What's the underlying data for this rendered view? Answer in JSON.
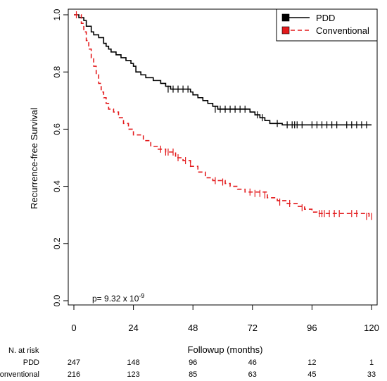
{
  "chart_data": {
    "type": "line",
    "subtype": "kaplan-meier",
    "xlabel": "Followup (months)",
    "ylabel": "Recurrence-free Survival",
    "xlim": [
      0,
      120
    ],
    "ylim": [
      0,
      1
    ],
    "xticks": [
      "0",
      "24",
      "48",
      "72",
      "96",
      "120"
    ],
    "yticks": [
      "0.0",
      "0.2",
      "0.4",
      "0.6",
      "0.8",
      "1.0"
    ],
    "legend_position": "top-right",
    "annotation": {
      "prefix": "p= 9.32 x 10",
      "exponent": "-9"
    },
    "series": [
      {
        "name": "PDD",
        "color": "#000000",
        "dash": "solid",
        "steps": [
          [
            0,
            1.0
          ],
          [
            2,
            0.99
          ],
          [
            4,
            0.98
          ],
          [
            5,
            0.96
          ],
          [
            7,
            0.94
          ],
          [
            8,
            0.93
          ],
          [
            10,
            0.92
          ],
          [
            12,
            0.9
          ],
          [
            13,
            0.89
          ],
          [
            14,
            0.88
          ],
          [
            15,
            0.87
          ],
          [
            17,
            0.86
          ],
          [
            19,
            0.85
          ],
          [
            21,
            0.84
          ],
          [
            23,
            0.83
          ],
          [
            24,
            0.82
          ],
          [
            25,
            0.8
          ],
          [
            27,
            0.79
          ],
          [
            29,
            0.78
          ],
          [
            32,
            0.77
          ],
          [
            35,
            0.76
          ],
          [
            37,
            0.75
          ],
          [
            39,
            0.74
          ],
          [
            47,
            0.73
          ],
          [
            48,
            0.72
          ],
          [
            50,
            0.71
          ],
          [
            52,
            0.7
          ],
          [
            54,
            0.69
          ],
          [
            56,
            0.68
          ],
          [
            58,
            0.67
          ],
          [
            71,
            0.66
          ],
          [
            73,
            0.65
          ],
          [
            75,
            0.64
          ],
          [
            77,
            0.63
          ],
          [
            79,
            0.62
          ],
          [
            84,
            0.615
          ]
        ],
        "censored": [
          [
            38,
            0.74
          ],
          [
            40,
            0.74
          ],
          [
            42,
            0.74
          ],
          [
            44,
            0.74
          ],
          [
            46,
            0.74
          ],
          [
            57,
            0.67
          ],
          [
            59,
            0.67
          ],
          [
            61,
            0.67
          ],
          [
            63,
            0.67
          ],
          [
            65,
            0.67
          ],
          [
            67,
            0.67
          ],
          [
            69,
            0.67
          ],
          [
            74,
            0.65
          ],
          [
            76,
            0.64
          ],
          [
            82,
            0.62
          ],
          [
            86,
            0.615
          ],
          [
            88,
            0.615
          ],
          [
            89,
            0.615
          ],
          [
            90,
            0.615
          ],
          [
            92,
            0.615
          ],
          [
            96,
            0.615
          ],
          [
            98,
            0.615
          ],
          [
            100,
            0.615
          ],
          [
            102,
            0.615
          ],
          [
            104,
            0.615
          ],
          [
            106,
            0.615
          ],
          [
            110,
            0.615
          ],
          [
            112,
            0.615
          ],
          [
            114,
            0.615
          ],
          [
            116,
            0.615
          ],
          [
            118,
            0.615
          ]
        ]
      },
      {
        "name": "Conventional",
        "color": "#e31a1c",
        "dash": "dashed",
        "steps": [
          [
            0,
            1.0
          ],
          [
            3,
            0.97
          ],
          [
            4,
            0.94
          ],
          [
            5,
            0.91
          ],
          [
            6,
            0.88
          ],
          [
            7,
            0.85
          ],
          [
            8,
            0.82
          ],
          [
            9,
            0.79
          ],
          [
            10,
            0.76
          ],
          [
            11,
            0.73
          ],
          [
            12,
            0.71
          ],
          [
            13,
            0.69
          ],
          [
            14,
            0.67
          ],
          [
            16,
            0.66
          ],
          [
            18,
            0.64
          ],
          [
            20,
            0.62
          ],
          [
            22,
            0.6
          ],
          [
            24,
            0.58
          ],
          [
            28,
            0.56
          ],
          [
            31,
            0.54
          ],
          [
            34,
            0.53
          ],
          [
            37,
            0.52
          ],
          [
            41,
            0.5
          ],
          [
            44,
            0.49
          ],
          [
            47,
            0.47
          ],
          [
            50,
            0.45
          ],
          [
            53,
            0.43
          ],
          [
            56,
            0.42
          ],
          [
            61,
            0.41
          ],
          [
            63,
            0.4
          ],
          [
            66,
            0.39
          ],
          [
            69,
            0.38
          ],
          [
            78,
            0.36
          ],
          [
            82,
            0.35
          ],
          [
            86,
            0.34
          ],
          [
            90,
            0.33
          ],
          [
            93,
            0.32
          ],
          [
            96,
            0.31
          ],
          [
            98,
            0.305
          ],
          [
            119,
            0.295
          ]
        ],
        "censored": [
          [
            1,
            1.0
          ],
          [
            35,
            0.53
          ],
          [
            37,
            0.52
          ],
          [
            38,
            0.52
          ],
          [
            40,
            0.52
          ],
          [
            42,
            0.5
          ],
          [
            45,
            0.49
          ],
          [
            47,
            0.48
          ],
          [
            57,
            0.42
          ],
          [
            60,
            0.415
          ],
          [
            71,
            0.38
          ],
          [
            73,
            0.375
          ],
          [
            75,
            0.375
          ],
          [
            77,
            0.37
          ],
          [
            83,
            0.345
          ],
          [
            87,
            0.34
          ],
          [
            92,
            0.325
          ],
          [
            99,
            0.305
          ],
          [
            100,
            0.305
          ],
          [
            101,
            0.305
          ],
          [
            103,
            0.305
          ],
          [
            105,
            0.305
          ],
          [
            107,
            0.305
          ],
          [
            112,
            0.305
          ],
          [
            114,
            0.305
          ],
          [
            118,
            0.295
          ],
          [
            120,
            0.295
          ]
        ]
      }
    ],
    "risk_table": {
      "title": "N. at risk",
      "rows": [
        {
          "label": "PDD",
          "values": [
            "247",
            "148",
            "96",
            "46",
            "12",
            "1"
          ]
        },
        {
          "label": "Conventional",
          "values": [
            "216",
            "123",
            "85",
            "63",
            "45",
            "33"
          ]
        }
      ]
    }
  }
}
